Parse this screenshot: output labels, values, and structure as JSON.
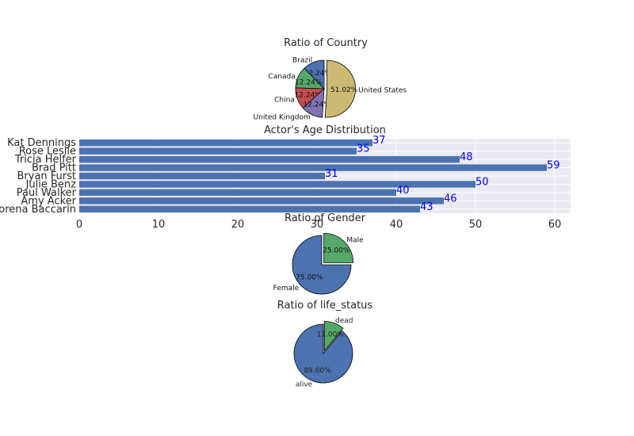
{
  "chart_data": [
    {
      "type": "pie",
      "title": "Ratio of Country",
      "categories": [
        "Brazil",
        "Canada",
        "China",
        "United Kingdom",
        "United States"
      ],
      "values": [
        12.24,
        12.24,
        12.24,
        12.24,
        51.02
      ],
      "labels": [
        "12.24%",
        "12.24%",
        "12.24%",
        "12.24%",
        "51.02%"
      ],
      "colors": [
        "#4c72b0",
        "#55a868",
        "#c44e52",
        "#8172b2",
        "#ccb974"
      ],
      "explode": [
        0,
        0,
        0,
        0,
        0.1
      ]
    },
    {
      "type": "bar",
      "orientation": "horizontal",
      "title": "Actor's Age Distribution",
      "categories": [
        "Kat Dennings",
        "Rose Leslie",
        "Tricia Helfer",
        "Brad Pitt",
        "Bryan Furst",
        "Julie Benz",
        "Paul Walker",
        "Amy Acker",
        "Morena Baccarin"
      ],
      "values": [
        37,
        35,
        48,
        59,
        31,
        50,
        40,
        46,
        43
      ],
      "data_labels": [
        "37",
        "35",
        "48",
        "59",
        "31",
        "50",
        "40",
        "46",
        "43"
      ],
      "xlim": [
        0,
        62
      ],
      "xticks": [
        "0",
        "10",
        "20",
        "30",
        "40",
        "50",
        "60"
      ],
      "color": "#4c72b0",
      "label_color": "#0000ff",
      "grid": true
    },
    {
      "type": "pie",
      "title": "Ratio of Gender",
      "categories": [
        "Female",
        "Male"
      ],
      "values": [
        75.0,
        25.0
      ],
      "labels": [
        "75.00%",
        "25.00%"
      ],
      "colors": [
        "#4c72b0",
        "#55a868"
      ],
      "explode": [
        0,
        0.1
      ]
    },
    {
      "type": "pie",
      "title": "Ratio of life_status",
      "categories": [
        "alive",
        "dead"
      ],
      "values": [
        89.0,
        11.0
      ],
      "labels": [
        "89.00%",
        "11.00%"
      ],
      "colors": [
        "#4c72b0",
        "#55a868"
      ],
      "explode": [
        0,
        0.1
      ]
    }
  ]
}
